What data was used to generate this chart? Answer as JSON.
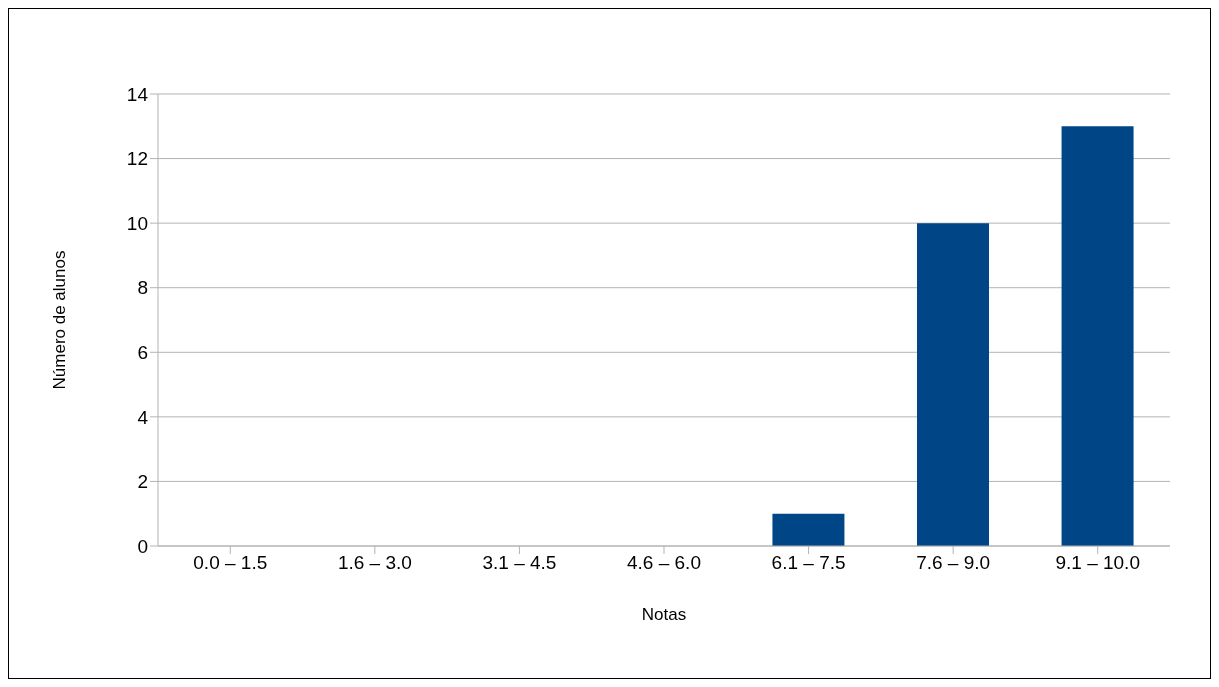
{
  "chart_data": {
    "type": "bar",
    "xlabel": "Notas",
    "ylabel": "Número de alunos",
    "categories": [
      "0.0 – 1.5",
      "1.6 – 3.0",
      "3.1 – 4.5",
      "4.6 – 6.0",
      "6.1 – 7.5",
      "7.6 – 9.0",
      "9.1 – 10.0"
    ],
    "values": [
      0,
      0,
      0,
      0,
      1,
      10,
      13
    ],
    "color": "#004586",
    "ylim": [
      0,
      14
    ],
    "yticks": [
      0,
      2,
      4,
      6,
      8,
      10,
      12,
      14
    ],
    "grid": "y",
    "legend": false
  }
}
